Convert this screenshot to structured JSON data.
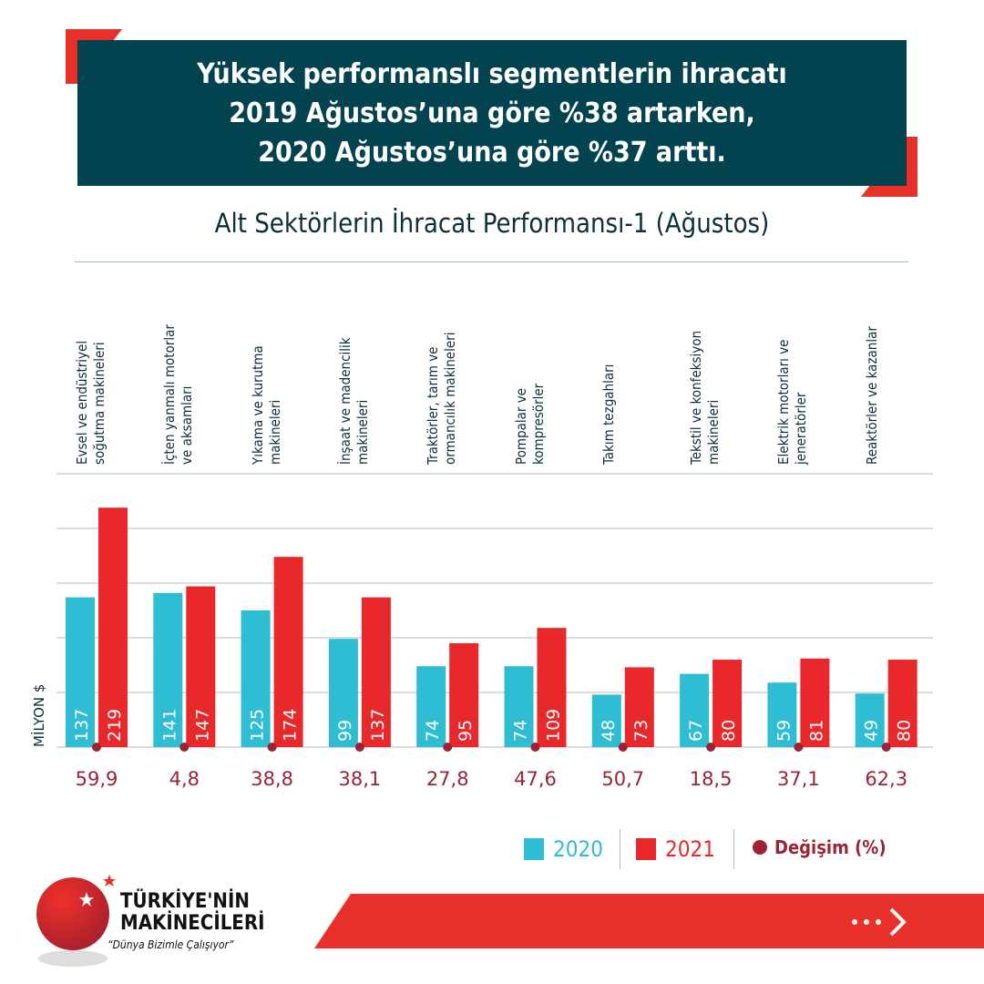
{
  "banner": {
    "lines": [
      "Yüksek performanslı segmentlerin ihracatı",
      "2019 Ağustos’una göre %38 artarken,",
      "2020 Ağustos’una göre %37 arttı."
    ]
  },
  "chart_data": {
    "type": "bar",
    "title": "Alt Sektörlerin İhracat Performansı-1 (Ağustos)",
    "ylabel": "MİLYON $",
    "ylim": [
      0,
      250
    ],
    "grid": true,
    "legend_position": "bottom-right",
    "categories": [
      [
        "Evsel ve endüstriyel",
        "soğutma makineleri"
      ],
      [
        "İçten yanmalı motorlar",
        "ve aksamları"
      ],
      [
        "Yıkama ve kurutma",
        "makineleri"
      ],
      [
        "İnşaat ve madencilik",
        "makineleri"
      ],
      [
        "Traktörler, tarım ve",
        "ormancılık makineleri"
      ],
      [
        "Pompalar ve",
        "kompresörler"
      ],
      [
        "Takım tezgahları",
        ""
      ],
      [
        "Tekstil ve konfeksiyon",
        "makineleri"
      ],
      [
        "Elektrik motorları ve",
        "jeneratörler"
      ],
      [
        "Reaktörler ve kazanlar",
        ""
      ]
    ],
    "series": [
      {
        "name": "2020",
        "color": "#2fbdd3",
        "values": [
          137,
          141,
          125,
          99,
          74,
          74,
          48,
          67,
          59,
          49
        ]
      },
      {
        "name": "2021",
        "color": "#e8282b",
        "values": [
          219,
          147,
          174,
          137,
          95,
          109,
          73,
          80,
          81,
          80
        ]
      }
    ],
    "change": {
      "name": "Değişim (%)",
      "color": "#9b2335",
      "labels": [
        "59,9",
        "4,8",
        "38,8",
        "38,1",
        "27,8",
        "47,6",
        "50,7",
        "18,5",
        "37,1",
        "62,3"
      ]
    }
  },
  "logo": {
    "line1": "TÜRKİYE'NİN",
    "line2": "MAKİNECİLERİ",
    "slogan": "“Dünya Bizimle Çalışıyor”"
  },
  "footer": {
    "arrow_icon": "dots-chevron-right-icon"
  }
}
